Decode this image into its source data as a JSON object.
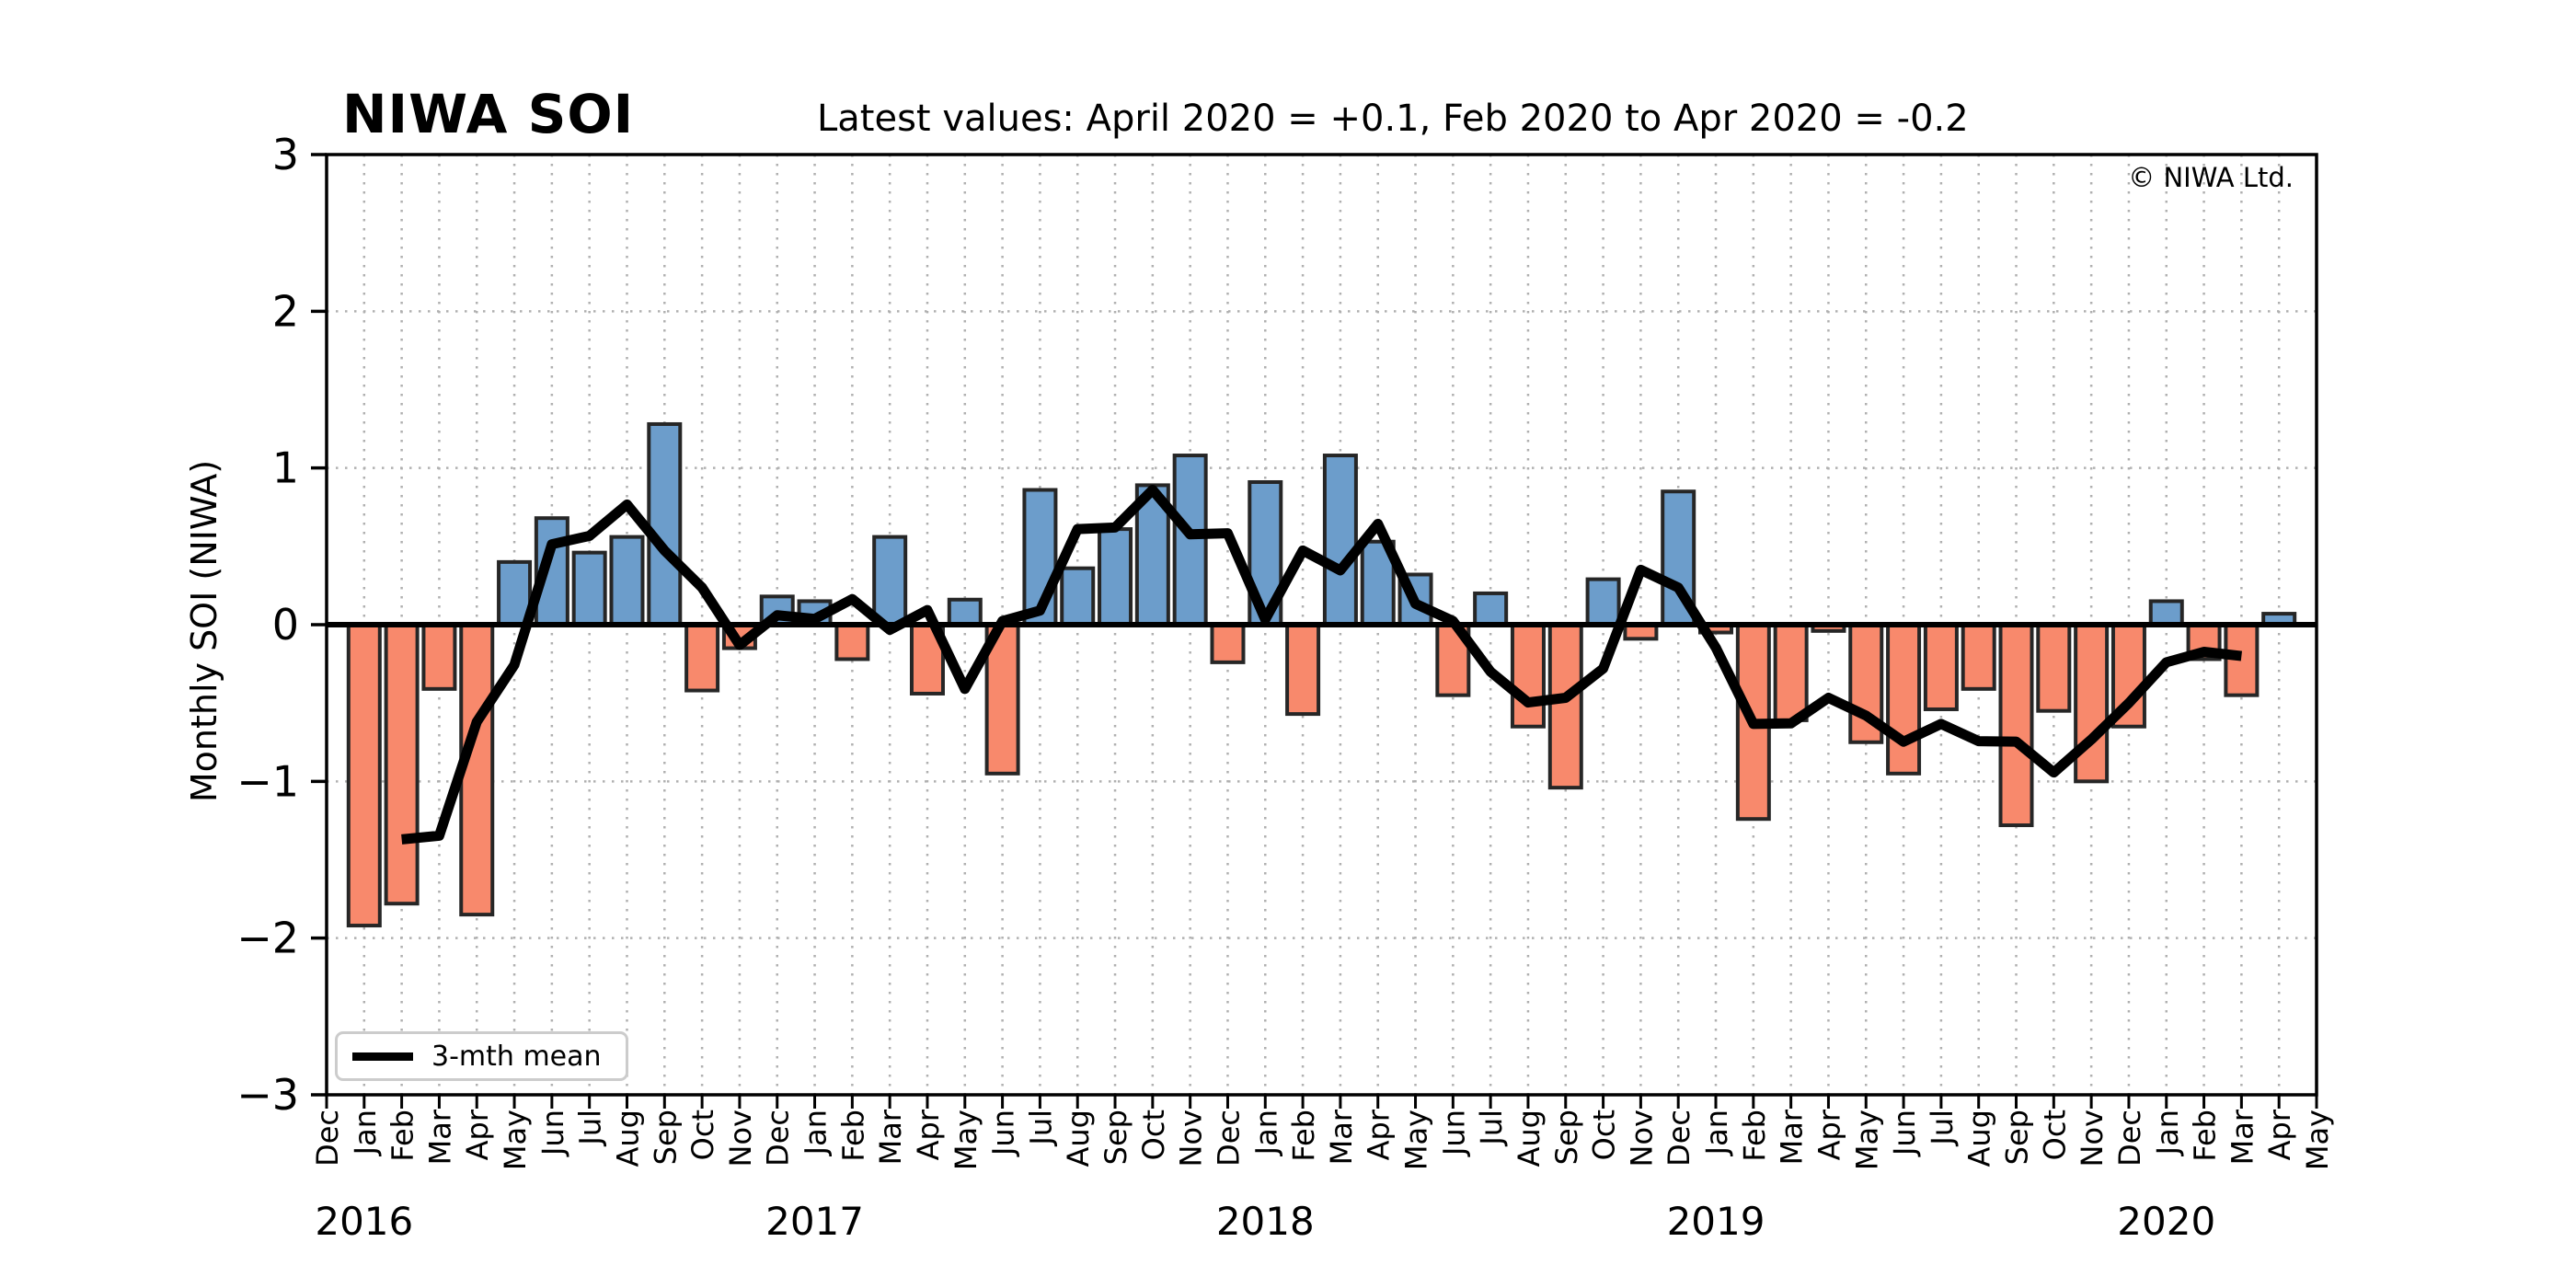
{
  "header": {
    "title": "NIWA SOI",
    "subtitle": "Latest values: April 2020 = +0.1, Feb 2020 to Apr 2020 = -0.2"
  },
  "plot": {
    "copyright": "© NIWA Ltd."
  },
  "chart_data": {
    "type": "bar",
    "title": "NIWA SOI",
    "subtitle": "Latest values: April 2020 = +0.1, Feb 2020 to Apr 2020 = -0.2",
    "xlabel": "",
    "ylabel": "Monthly SOI (NIWA)",
    "ylim": [
      -3,
      3
    ],
    "grid": true,
    "legend": {
      "label": "3-mth mean",
      "position": "lower left"
    },
    "line_series": {
      "name": "3-mth mean",
      "definition": "centered 3-month running mean of the monthly SOI bars, plotted Feb 2016 through Mar 2020",
      "first_point": {
        "month": "Feb 2016",
        "value": -1.37
      },
      "last_point": {
        "month": "Mar 2020",
        "value": -0.2
      }
    },
    "colors": {
      "positive_bar": "#6C9DCB",
      "negative_bar": "#F8896C",
      "bar_outline": "#262626",
      "mean_line": "#000000",
      "gridline": "#b0b0b0"
    },
    "yticks": [
      {
        "value": 3,
        "label": "3"
      },
      {
        "value": 2,
        "label": "2"
      },
      {
        "value": 1,
        "label": "1"
      },
      {
        "value": 0,
        "label": "0"
      },
      {
        "value": -1,
        "label": "−1"
      },
      {
        "value": -2,
        "label": "−2"
      },
      {
        "value": -3,
        "label": "−3"
      }
    ],
    "months": [
      {
        "label": "Dec",
        "year": 2015,
        "value": null
      },
      {
        "label": "Jan",
        "year": 2016,
        "value": -1.92
      },
      {
        "label": "Feb",
        "year": 2016,
        "value": -1.78
      },
      {
        "label": "Mar",
        "year": 2016,
        "value": -0.41
      },
      {
        "label": "Apr",
        "year": 2016,
        "value": -1.85
      },
      {
        "label": "May",
        "year": 2016,
        "value": 0.4
      },
      {
        "label": "Jun",
        "year": 2016,
        "value": 0.68
      },
      {
        "label": "Jul",
        "year": 2016,
        "value": 0.46
      },
      {
        "label": "Aug",
        "year": 2016,
        "value": 0.56
      },
      {
        "label": "Sep",
        "year": 2016,
        "value": 1.28
      },
      {
        "label": "Oct",
        "year": 2016,
        "value": -0.42
      },
      {
        "label": "Nov",
        "year": 2016,
        "value": -0.15
      },
      {
        "label": "Dec",
        "year": 2016,
        "value": 0.18
      },
      {
        "label": "Jan",
        "year": 2017,
        "value": 0.15
      },
      {
        "label": "Feb",
        "year": 2017,
        "value": -0.22
      },
      {
        "label": "Mar",
        "year": 2017,
        "value": 0.56
      },
      {
        "label": "Apr",
        "year": 2017,
        "value": -0.44
      },
      {
        "label": "May",
        "year": 2017,
        "value": 0.16
      },
      {
        "label": "Jun",
        "year": 2017,
        "value": -0.95
      },
      {
        "label": "Jul",
        "year": 2017,
        "value": 0.86
      },
      {
        "label": "Aug",
        "year": 2017,
        "value": 0.36
      },
      {
        "label": "Sep",
        "year": 2017,
        "value": 0.61
      },
      {
        "label": "Oct",
        "year": 2017,
        "value": 0.89
      },
      {
        "label": "Nov",
        "year": 2017,
        "value": 1.08
      },
      {
        "label": "Dec",
        "year": 2017,
        "value": -0.24
      },
      {
        "label": "Jan",
        "year": 2018,
        "value": 0.91
      },
      {
        "label": "Feb",
        "year": 2018,
        "value": -0.57
      },
      {
        "label": "Mar",
        "year": 2018,
        "value": 1.08
      },
      {
        "label": "Apr",
        "year": 2018,
        "value": 0.53
      },
      {
        "label": "May",
        "year": 2018,
        "value": 0.32
      },
      {
        "label": "Jun",
        "year": 2018,
        "value": -0.45
      },
      {
        "label": "Jul",
        "year": 2018,
        "value": 0.2
      },
      {
        "label": "Aug",
        "year": 2018,
        "value": -0.65
      },
      {
        "label": "Sep",
        "year": 2018,
        "value": -1.04
      },
      {
        "label": "Oct",
        "year": 2018,
        "value": 0.29
      },
      {
        "label": "Nov",
        "year": 2018,
        "value": -0.09
      },
      {
        "label": "Dec",
        "year": 2018,
        "value": 0.85
      },
      {
        "label": "Jan",
        "year": 2019,
        "value": -0.05
      },
      {
        "label": "Feb",
        "year": 2019,
        "value": -1.24
      },
      {
        "label": "Mar",
        "year": 2019,
        "value": -0.61
      },
      {
        "label": "Apr",
        "year": 2019,
        "value": -0.04
      },
      {
        "label": "May",
        "year": 2019,
        "value": -0.75
      },
      {
        "label": "Jun",
        "year": 2019,
        "value": -0.95
      },
      {
        "label": "Jul",
        "year": 2019,
        "value": -0.54
      },
      {
        "label": "Aug",
        "year": 2019,
        "value": -0.41
      },
      {
        "label": "Sep",
        "year": 2019,
        "value": -1.28
      },
      {
        "label": "Oct",
        "year": 2019,
        "value": -0.55
      },
      {
        "label": "Nov",
        "year": 2019,
        "value": -1.0
      },
      {
        "label": "Dec",
        "year": 2019,
        "value": -0.65
      },
      {
        "label": "Jan",
        "year": 2020,
        "value": 0.15
      },
      {
        "label": "Feb",
        "year": 2020,
        "value": -0.22
      },
      {
        "label": "Mar",
        "year": 2020,
        "value": -0.45
      },
      {
        "label": "Apr",
        "year": 2020,
        "value": 0.07
      },
      {
        "label": "May",
        "year": 2020,
        "value": null
      }
    ],
    "year_labels": [
      {
        "label": "2016",
        "month_index": 1
      },
      {
        "label": "2017",
        "month_index": 13
      },
      {
        "label": "2018",
        "month_index": 25
      },
      {
        "label": "2019",
        "month_index": 37
      },
      {
        "label": "2020",
        "month_index": 49
      }
    ]
  }
}
